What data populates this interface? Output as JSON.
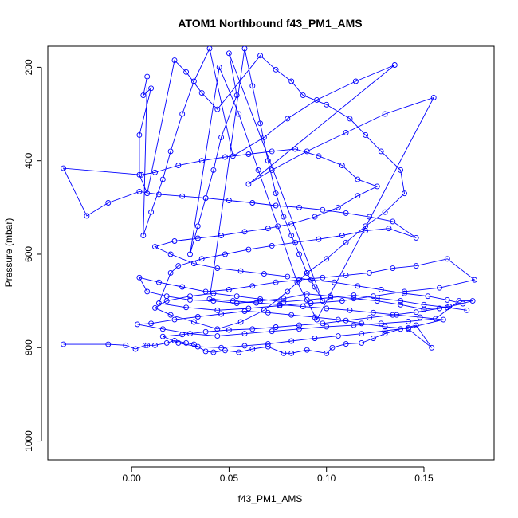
{
  "chart_data": {
    "type": "line",
    "title": "ATOM1 Northbound f43_PM1_AMS",
    "xlabel": "f43_PM1_AMS",
    "ylabel": "Pressure (mbar)",
    "xlim": [
      -0.043,
      0.186
    ],
    "ylim": [
      1040,
      155
    ],
    "y_reversed": true,
    "x_ticks": [
      0.0,
      0.05,
      0.1,
      0.15
    ],
    "x_tick_labels": [
      "0.00",
      "0.05",
      "0.10",
      "0.15"
    ],
    "y_ticks": [
      200,
      400,
      600,
      800,
      1000
    ],
    "y_tick_labels": [
      "200",
      "400",
      "600",
      "800",
      "1000"
    ],
    "grid": false,
    "marker": "open-circle",
    "line_color": "#0000ff",
    "series": [
      {
        "values_note": "",
        "points": [
          [
            -0.035,
            793
          ],
          [
            -0.012,
            793
          ],
          [
            -0.003,
            795
          ],
          [
            0.002,
            803
          ],
          [
            0.007,
            795
          ],
          [
            0.008,
            795
          ],
          [
            0.012,
            795
          ],
          [
            0.018,
            790
          ],
          [
            0.022,
            785
          ],
          [
            0.028,
            790
          ],
          [
            0.032,
            793
          ],
          [
            0.038,
            808
          ],
          [
            0.042,
            810
          ],
          [
            0.048,
            806
          ],
          [
            0.055,
            810
          ],
          [
            0.062,
            803
          ],
          [
            0.07,
            798
          ],
          [
            0.078,
            812
          ],
          [
            0.082,
            812
          ],
          [
            0.09,
            805
          ],
          [
            0.1,
            812
          ],
          [
            0.103,
            800
          ],
          [
            0.11,
            792
          ],
          [
            0.118,
            790
          ],
          [
            0.124,
            780
          ],
          [
            0.13,
            770
          ],
          [
            0.138,
            760
          ],
          [
            0.146,
            752
          ],
          [
            0.154,
            800
          ],
          [
            0.142,
            760
          ],
          [
            0.13,
            755
          ],
          [
            0.118,
            748
          ],
          [
            0.106,
            740
          ],
          [
            0.094,
            735
          ],
          [
            0.082,
            730
          ],
          [
            0.07,
            725
          ],
          [
            0.058,
            722
          ],
          [
            0.046,
            728
          ],
          [
            0.034,
            734
          ],
          [
            0.022,
            740
          ],
          [
            0.01,
            748
          ],
          [
            0.003,
            750
          ],
          [
            0.016,
            760
          ],
          [
            0.03,
            770
          ],
          [
            0.044,
            775
          ],
          [
            0.058,
            770
          ],
          [
            0.072,
            765
          ],
          [
            0.086,
            760
          ],
          [
            0.1,
            755
          ],
          [
            0.114,
            752
          ],
          [
            0.128,
            748
          ],
          [
            0.142,
            744
          ],
          [
            0.156,
            738
          ],
          [
            0.168,
            700
          ],
          [
            0.175,
            700
          ],
          [
            0.163,
            712
          ],
          [
            0.15,
            718
          ],
          [
            0.138,
            708
          ],
          [
            0.126,
            700
          ],
          [
            0.114,
            695
          ],
          [
            0.102,
            690
          ],
          [
            0.09,
            685
          ],
          [
            0.078,
            695
          ],
          [
            0.066,
            700
          ],
          [
            0.054,
            705
          ],
          [
            0.042,
            700
          ],
          [
            0.03,
            698
          ],
          [
            0.018,
            690
          ],
          [
            0.008,
            680
          ],
          [
            0.004,
            650
          ],
          [
            0.014,
            660
          ],
          [
            0.026,
            670
          ],
          [
            0.038,
            680
          ],
          [
            0.05,
            676
          ],
          [
            0.062,
            668
          ],
          [
            0.074,
            660
          ],
          [
            0.086,
            655
          ],
          [
            0.098,
            650
          ],
          [
            0.11,
            645
          ],
          [
            0.122,
            640
          ],
          [
            0.134,
            630
          ],
          [
            0.146,
            625
          ],
          [
            0.162,
            610
          ],
          [
            0.176,
            655
          ],
          [
            0.158,
            672
          ],
          [
            0.14,
            680
          ],
          [
            0.124,
            690
          ],
          [
            0.108,
            700
          ],
          [
            0.092,
            705
          ],
          [
            0.076,
            710
          ],
          [
            0.06,
            716
          ],
          [
            0.044,
            720
          ],
          [
            0.028,
            714
          ],
          [
            0.014,
            705
          ],
          [
            0.02,
            640
          ],
          [
            0.024,
            625
          ],
          [
            0.036,
            610
          ],
          [
            0.048,
            600
          ],
          [
            0.06,
            590
          ],
          [
            0.072,
            582
          ],
          [
            0.084,
            575
          ],
          [
            0.096,
            568
          ],
          [
            0.108,
            560
          ],
          [
            0.12,
            550
          ],
          [
            0.132,
            545
          ],
          [
            0.146,
            565
          ],
          [
            0.134,
            530
          ],
          [
            0.122,
            520
          ],
          [
            0.11,
            512
          ],
          [
            0.098,
            505
          ],
          [
            0.086,
            500
          ],
          [
            0.074,
            496
          ],
          [
            0.062,
            490
          ],
          [
            0.05,
            485
          ],
          [
            0.038,
            480
          ],
          [
            0.026,
            476
          ],
          [
            0.014,
            472
          ],
          [
            0.004,
            466
          ],
          [
            -0.012,
            490
          ],
          [
            -0.023,
            518
          ],
          [
            -0.035,
            416
          ],
          [
            0.005,
            430
          ],
          [
            0.012,
            425
          ],
          [
            0.024,
            410
          ],
          [
            0.036,
            400
          ],
          [
            0.048,
            392
          ],
          [
            0.06,
            386
          ],
          [
            0.072,
            380
          ],
          [
            0.084,
            375
          ],
          [
            0.096,
            390
          ],
          [
            0.108,
            410
          ],
          [
            0.116,
            440
          ],
          [
            0.126,
            455
          ],
          [
            0.116,
            475
          ],
          [
            0.106,
            500
          ],
          [
            0.094,
            520
          ],
          [
            0.082,
            535
          ],
          [
            0.07,
            545
          ],
          [
            0.058,
            552
          ],
          [
            0.046,
            560
          ],
          [
            0.034,
            566
          ],
          [
            0.022,
            572
          ],
          [
            0.012,
            584
          ],
          [
            0.02,
            600
          ],
          [
            0.032,
            620
          ],
          [
            0.044,
            630
          ],
          [
            0.056,
            636
          ],
          [
            0.068,
            642
          ],
          [
            0.08,
            648
          ],
          [
            0.092,
            655
          ],
          [
            0.104,
            660
          ],
          [
            0.116,
            668
          ],
          [
            0.128,
            676
          ],
          [
            0.14,
            684
          ],
          [
            0.152,
            690
          ],
          [
            0.162,
            698
          ],
          [
            0.17,
            706
          ],
          [
            0.158,
            716
          ],
          [
            0.146,
            724
          ],
          [
            0.134,
            730
          ],
          [
            0.122,
            736
          ],
          [
            0.11,
            742
          ],
          [
            0.098,
            748
          ],
          [
            0.086,
            752
          ],
          [
            0.074,
            756
          ],
          [
            0.062,
            760
          ],
          [
            0.05,
            762
          ],
          [
            0.038,
            766
          ],
          [
            0.026,
            772
          ],
          [
            0.016,
            776
          ],
          [
            0.024,
            790
          ],
          [
            0.034,
            798
          ],
          [
            0.046,
            800
          ],
          [
            0.058,
            796
          ],
          [
            0.07,
            792
          ],
          [
            0.082,
            786
          ],
          [
            0.094,
            780
          ],
          [
            0.106,
            775
          ],
          [
            0.118,
            770
          ],
          [
            0.13,
            764
          ],
          [
            0.142,
            758
          ],
          [
            0.16,
            740
          ],
          [
            0.148,
            735
          ],
          [
            0.136,
            730
          ],
          [
            0.124,
            725
          ],
          [
            0.112,
            720
          ],
          [
            0.1,
            716
          ],
          [
            0.088,
            712
          ],
          [
            0.076,
            708
          ],
          [
            0.064,
            704
          ],
          [
            0.052,
            700
          ],
          [
            0.04,
            696
          ],
          [
            0.058,
            160
          ],
          [
            0.062,
            240
          ],
          [
            0.066,
            320
          ],
          [
            0.07,
            400
          ],
          [
            0.074,
            470
          ],
          [
            0.078,
            520
          ],
          [
            0.082,
            560
          ],
          [
            0.086,
            600
          ],
          [
            0.09,
            640
          ],
          [
            0.094,
            670
          ],
          [
            0.098,
            700
          ],
          [
            0.05,
            170
          ],
          [
            0.054,
            260
          ],
          [
            0.046,
            350
          ],
          [
            0.042,
            420
          ],
          [
            0.038,
            480
          ],
          [
            0.034,
            540
          ],
          [
            0.03,
            600
          ],
          [
            0.045,
            200
          ],
          [
            0.055,
            300
          ],
          [
            0.065,
            420
          ],
          [
            0.075,
            540
          ],
          [
            0.085,
            660
          ],
          [
            0.095,
            740
          ],
          [
            0.155,
            265
          ],
          [
            0.13,
            300
          ],
          [
            0.11,
            340
          ],
          [
            0.09,
            380
          ],
          [
            0.072,
            420
          ],
          [
            0.06,
            450
          ],
          [
            0.135,
            195
          ],
          [
            0.115,
            230
          ],
          [
            0.095,
            270
          ],
          [
            0.08,
            310
          ],
          [
            0.068,
            350
          ],
          [
            0.052,
            390
          ],
          [
            0.04,
            160
          ],
          [
            0.032,
            230
          ],
          [
            0.026,
            300
          ],
          [
            0.02,
            380
          ],
          [
            0.016,
            440
          ],
          [
            0.01,
            510
          ],
          [
            0.006,
            560
          ],
          [
            0.008,
            220
          ],
          [
            0.006,
            260
          ],
          [
            0.01,
            245
          ],
          [
            0.004,
            345
          ],
          [
            0.004,
            430
          ],
          [
            0.008,
            470
          ],
          [
            0.022,
            185
          ],
          [
            0.028,
            210
          ],
          [
            0.036,
            255
          ],
          [
            0.044,
            290
          ],
          [
            0.066,
            175
          ],
          [
            0.074,
            205
          ],
          [
            0.082,
            230
          ],
          [
            0.088,
            260
          ],
          [
            0.1,
            280
          ],
          [
            0.112,
            310
          ],
          [
            0.12,
            345
          ],
          [
            0.128,
            380
          ],
          [
            0.138,
            420
          ],
          [
            0.14,
            470
          ],
          [
            0.13,
            510
          ],
          [
            0.12,
            540
          ],
          [
            0.11,
            575
          ],
          [
            0.1,
            610
          ],
          [
            0.09,
            640
          ],
          [
            0.08,
            680
          ],
          [
            0.068,
            720
          ],
          [
            0.056,
            745
          ],
          [
            0.044,
            760
          ],
          [
            0.032,
            745
          ],
          [
            0.02,
            730
          ],
          [
            0.012,
            715
          ],
          [
            0.018,
            700
          ],
          [
            0.03,
            690
          ],
          [
            0.042,
            684
          ],
          [
            0.054,
            690
          ],
          [
            0.066,
            696
          ],
          [
            0.078,
            702
          ],
          [
            0.09,
            698
          ],
          [
            0.102,
            693
          ],
          [
            0.114,
            688
          ],
          [
            0.126,
            694
          ],
          [
            0.138,
            700
          ],
          [
            0.15,
            708
          ],
          [
            0.162,
            714
          ],
          [
            0.172,
            720
          ]
        ]
      }
    ]
  }
}
